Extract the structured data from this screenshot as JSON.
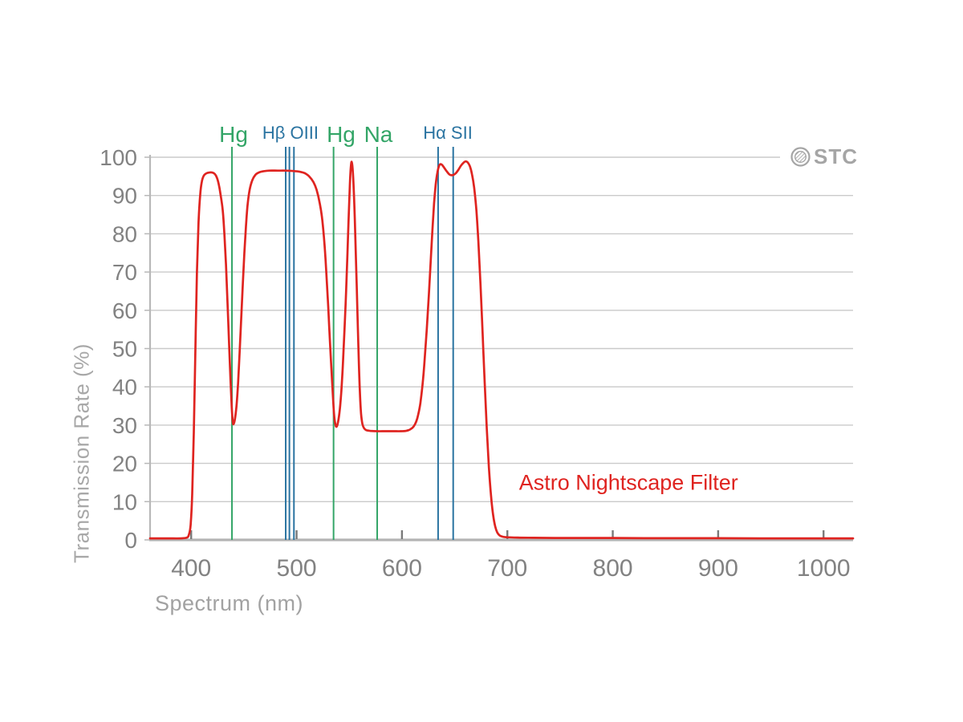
{
  "brand": {
    "logo_text": "STC"
  },
  "chart_data": {
    "type": "line",
    "title": "",
    "xlabel": "Spectrum (nm)",
    "ylabel": "Transmission Rate (%)",
    "x_ticks": [
      400,
      500,
      600,
      700,
      800,
      900,
      1000
    ],
    "y_ticks": [
      0,
      10,
      20,
      30,
      40,
      50,
      60,
      70,
      80,
      90,
      100
    ],
    "xlim": [
      361,
      1028
    ],
    "ylim": [
      0,
      100
    ],
    "grid": true,
    "legend_position": "none",
    "annotation": {
      "text": "Astro Nightscape Filter",
      "x_nm": 815,
      "y_pct": 14.8
    },
    "reference_lines": [
      {
        "label": "Hg",
        "nm": 438.7,
        "color_key": "green"
      },
      {
        "label": "Hβ",
        "nm": 489.7,
        "color_key": "teal"
      },
      {
        "label": "OIII",
        "nm": 493.2,
        "color_key": "teal"
      },
      {
        "label": "OIII",
        "nm": 497.5,
        "color_key": "teal"
      },
      {
        "label": "Hg",
        "nm": 535.1,
        "color_key": "green"
      },
      {
        "label": "Na",
        "nm": 576.5,
        "color_key": "green"
      },
      {
        "label": "Hα",
        "nm": 634.3,
        "color_key": "teal"
      },
      {
        "label": "SII",
        "nm": 648.6,
        "color_key": "teal"
      }
    ],
    "line_labels": [
      {
        "text": "Hg",
        "x_nm": 440.2,
        "color_key": "green",
        "size": "large"
      },
      {
        "text": "Hβ OIII",
        "x_nm": 494.2,
        "color_key": "teal",
        "size": "small"
      },
      {
        "text": "Hg",
        "x_nm": 542.2,
        "color_key": "green",
        "size": "large"
      },
      {
        "text": "Na",
        "x_nm": 577.6,
        "color_key": "green",
        "size": "large"
      },
      {
        "text": "Hα SII",
        "x_nm": 643.5,
        "color_key": "teal",
        "size": "small"
      }
    ],
    "series": [
      {
        "name": "Astro Nightscape Filter",
        "points": [
          [
            361,
            0.4
          ],
          [
            378,
            0.4
          ],
          [
            390,
            0.4
          ],
          [
            396,
            0.6
          ],
          [
            398,
            1.5
          ],
          [
            399.5,
            4
          ],
          [
            401,
            12
          ],
          [
            402.5,
            28
          ],
          [
            404,
            50
          ],
          [
            405.5,
            70
          ],
          [
            407,
            83
          ],
          [
            408.5,
            90
          ],
          [
            410,
            93.5
          ],
          [
            412,
            95.2
          ],
          [
            414.5,
            95.8
          ],
          [
            417,
            96
          ],
          [
            420,
            96
          ],
          [
            422.5,
            95.6
          ],
          [
            424.5,
            94.6
          ],
          [
            426.5,
            92.5
          ],
          [
            428,
            90
          ],
          [
            430,
            86
          ],
          [
            431.5,
            80
          ],
          [
            433,
            72
          ],
          [
            434.5,
            62
          ],
          [
            436,
            51
          ],
          [
            437.3,
            42
          ],
          [
            438.5,
            34.5
          ],
          [
            439.5,
            30.8
          ],
          [
            440.3,
            30.3
          ],
          [
            441.5,
            31.5
          ],
          [
            443,
            35
          ],
          [
            444.5,
            41
          ],
          [
            446,
            49
          ],
          [
            447.5,
            58
          ],
          [
            449,
            67
          ],
          [
            450.5,
            75
          ],
          [
            452,
            82
          ],
          [
            453.5,
            87.5
          ],
          [
            455.5,
            91.5
          ],
          [
            458,
            94
          ],
          [
            461,
            95.4
          ],
          [
            464,
            96
          ],
          [
            468,
            96.3
          ],
          [
            474,
            96.5
          ],
          [
            482,
            96.5
          ],
          [
            490,
            96.5
          ],
          [
            497,
            96.4
          ],
          [
            503,
            96.2
          ],
          [
            508,
            95.8
          ],
          [
            512,
            95
          ],
          [
            516,
            93.5
          ],
          [
            519,
            91.5
          ],
          [
            522,
            88
          ],
          [
            524,
            84.5
          ],
          [
            526,
            79
          ],
          [
            528,
            71
          ],
          [
            530,
            61
          ],
          [
            532,
            50
          ],
          [
            534,
            40
          ],
          [
            535.5,
            33
          ],
          [
            536.8,
            30.2
          ],
          [
            538,
            29.6
          ],
          [
            539.5,
            31
          ],
          [
            541,
            34
          ],
          [
            542.5,
            39
          ],
          [
            544,
            46
          ],
          [
            545.5,
            55
          ],
          [
            547,
            65
          ],
          [
            548.3,
            75
          ],
          [
            549.5,
            85
          ],
          [
            550.6,
            93
          ],
          [
            551.5,
            97.5
          ],
          [
            552.3,
            98.8
          ],
          [
            553.2,
            97
          ],
          [
            554.2,
            92
          ],
          [
            555.2,
            84
          ],
          [
            556.4,
            73
          ],
          [
            557.6,
            61
          ],
          [
            558.8,
            49
          ],
          [
            560,
            39
          ],
          [
            561.2,
            33
          ],
          [
            562.5,
            30.3
          ],
          [
            564,
            29.2
          ],
          [
            566,
            28.7
          ],
          [
            570,
            28.5
          ],
          [
            576,
            28.4
          ],
          [
            584,
            28.4
          ],
          [
            592,
            28.4
          ],
          [
            599,
            28.4
          ],
          [
            604,
            28.5
          ],
          [
            608,
            28.9
          ],
          [
            611,
            29.6
          ],
          [
            613.5,
            30.9
          ],
          [
            615.5,
            32.8
          ],
          [
            617.5,
            35.8
          ],
          [
            619.5,
            40.5
          ],
          [
            621.5,
            47
          ],
          [
            623.5,
            55
          ],
          [
            625.5,
            64
          ],
          [
            627.5,
            74
          ],
          [
            629,
            81.5
          ],
          [
            630.5,
            88
          ],
          [
            632,
            92.8
          ],
          [
            633.5,
            95.8
          ],
          [
            635,
            97.6
          ],
          [
            636.5,
            98.2
          ],
          [
            638,
            98
          ],
          [
            640,
            97.3
          ],
          [
            642.5,
            96.3
          ],
          [
            645,
            95.5
          ],
          [
            647,
            95.3
          ],
          [
            649,
            95.4
          ],
          [
            651,
            95.8
          ],
          [
            653.5,
            96.7
          ],
          [
            656,
            97.8
          ],
          [
            658.5,
            98.6
          ],
          [
            660.5,
            98.9
          ],
          [
            662.5,
            98.6
          ],
          [
            664.5,
            97.6
          ],
          [
            666.5,
            95.5
          ],
          [
            668.5,
            92
          ],
          [
            670.5,
            86.5
          ],
          [
            672.5,
            78
          ],
          [
            674.5,
            67
          ],
          [
            676.5,
            54
          ],
          [
            678.5,
            41
          ],
          [
            680.5,
            29
          ],
          [
            682.5,
            19
          ],
          [
            684.5,
            11.5
          ],
          [
            686.5,
            6.5
          ],
          [
            688.5,
            3.5
          ],
          [
            690.5,
            1.9
          ],
          [
            693,
            1.1
          ],
          [
            696,
            0.8
          ],
          [
            700,
            0.7
          ],
          [
            710,
            0.6
          ],
          [
            725,
            0.55
          ],
          [
            745,
            0.5
          ],
          [
            770,
            0.5
          ],
          [
            800,
            0.5
          ],
          [
            830,
            0.45
          ],
          [
            860,
            0.45
          ],
          [
            900,
            0.45
          ],
          [
            940,
            0.4
          ],
          [
            980,
            0.4
          ],
          [
            1010,
            0.4
          ],
          [
            1028,
            0.4
          ]
        ]
      }
    ],
    "colors": {
      "line": "#df2420",
      "annotation": "#df2420",
      "green": "#33a567",
      "teal": "#2b74a1",
      "grid": "#cacaca",
      "axis": "#b8b8b8",
      "axis_bottom": "#b3b3b3",
      "x_tick": "#7a7a7a",
      "tick_label": "#828282",
      "axis_title": "#a2a2a2",
      "logo": "#a5a5a5"
    }
  }
}
